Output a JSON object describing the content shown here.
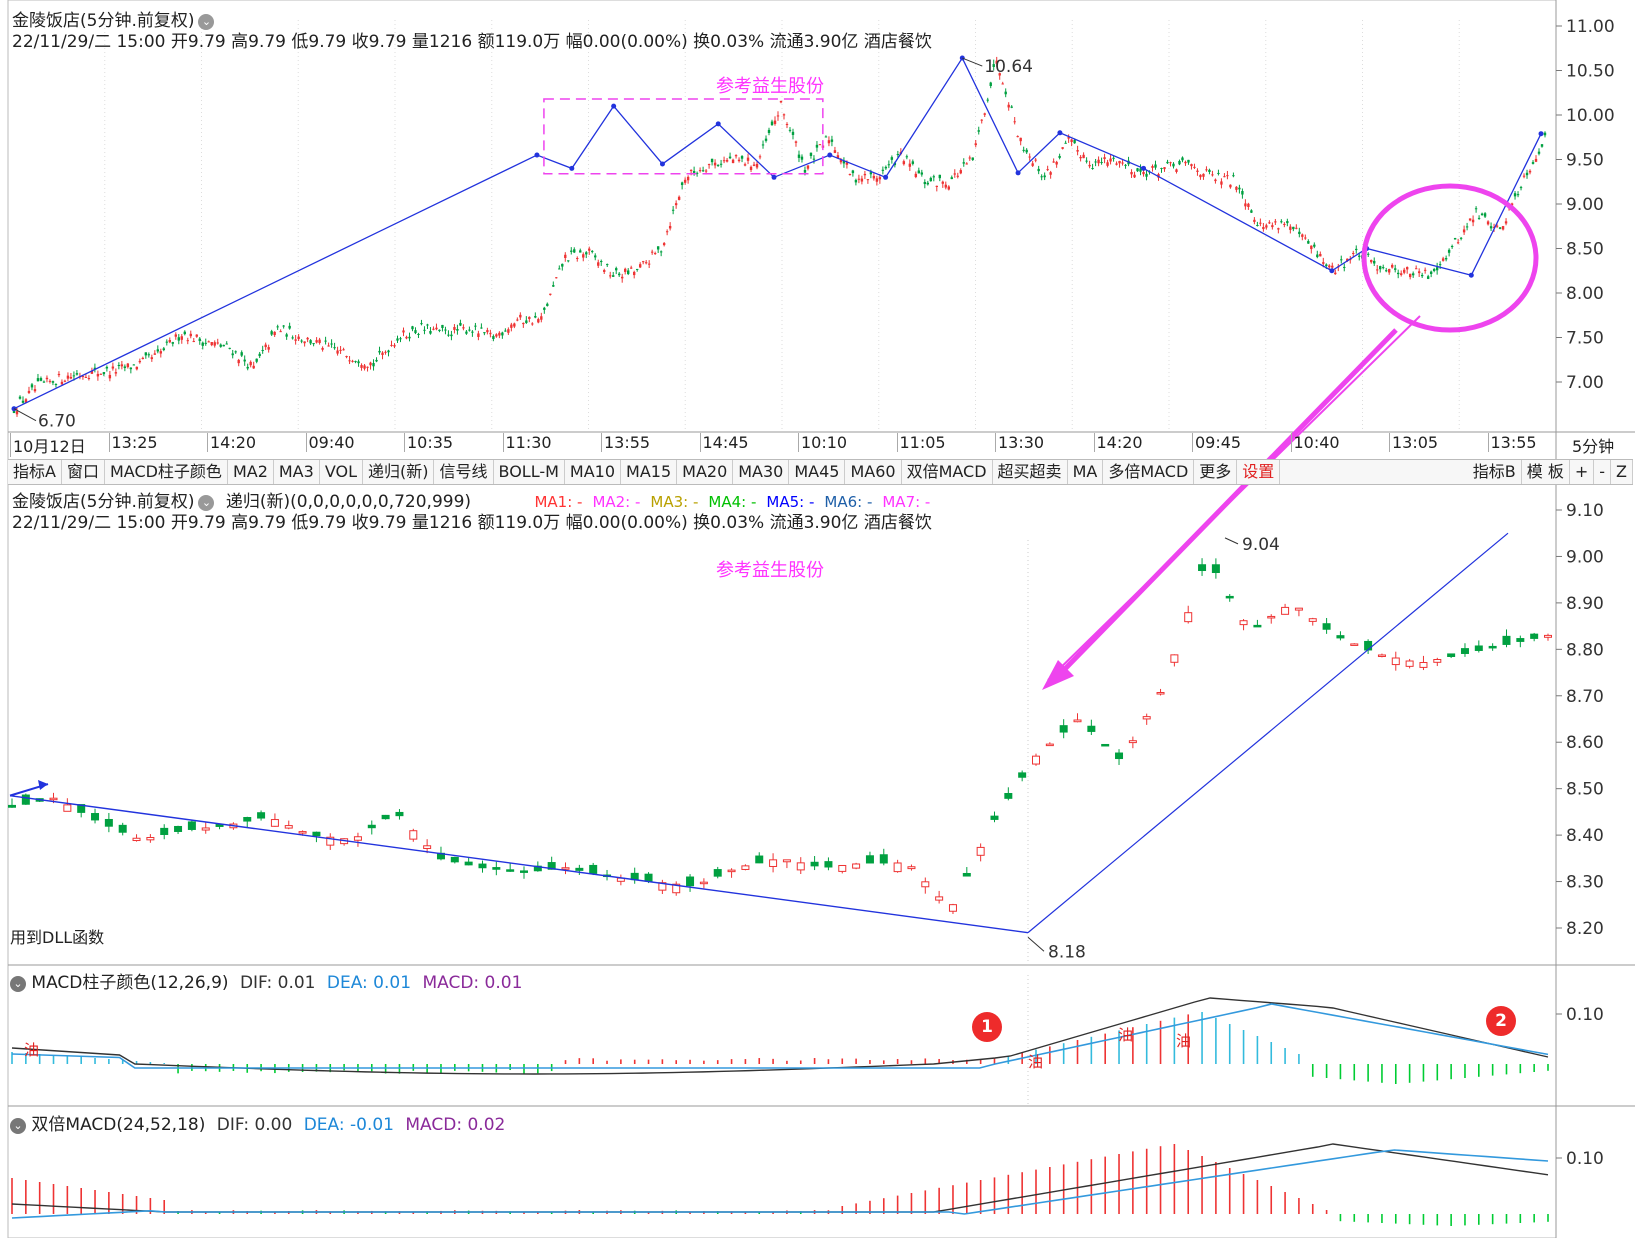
{
  "upper_panel": {
    "title": "金陵饭店(5分钟.前复权)",
    "info_line": "22/11/29/二 15:00 开9.79 高9.79 低9.79 收9.79 量1216 额119.0万 幅0.00(0.00%) 换0.03% 流通3.90亿 酒店餐饮",
    "note": "参考益生股份",
    "high_label": "10.64",
    "low_label": "6.70",
    "time_labels": [
      "10月12日",
      "13:25",
      "14:20",
      "09:40",
      "10:35",
      "11:30",
      "13:55",
      "14:45",
      "10:10",
      "11:05",
      "13:30",
      "14:20",
      "09:45",
      "10:40",
      "13:05",
      "13:55"
    ],
    "period_label": "5分钟"
  },
  "toolbar": {
    "left": [
      "指标A",
      "窗口",
      "MACD柱子颜色",
      "MA2",
      "MA3",
      "VOL",
      "递归(新)",
      "信号线",
      "BOLL-M",
      "MA10",
      "MA15",
      "MA20",
      "MA30",
      "MA45",
      "MA60",
      "双倍MACD",
      "超买超卖",
      "MA",
      "多倍MACD",
      "更多"
    ],
    "settings": "设置",
    "right": [
      "指标B",
      "模 板",
      "+",
      "-",
      "Z"
    ]
  },
  "middle_panel": {
    "title": "金陵饭店(5分钟.前复权)",
    "indicator": "递归(新)(0,0,0,0,0,0,720,999)",
    "ma_legend": [
      "MA1: -",
      "MA2: -",
      "MA3: -",
      "MA4: -",
      "MA5: -",
      "MA6: -",
      "MA7: -"
    ],
    "ma_colors": [
      "#ff3333",
      "#ff33ff",
      "#b8a000",
      "#00c000",
      "#0000ff",
      "#1e5fa8",
      "#ff33ff"
    ],
    "info_line": "22/11/29/二 15:00 开9.79 高9.79 低9.79 收9.79 量1216 额119.0万 幅0.00(0.00%) 换0.03% 流通3.90亿 酒店餐饮",
    "note": "参考益生股份",
    "high_label": "9.04",
    "low_label": "8.18",
    "bottom_note": "用到DLL函数"
  },
  "macd_panel": {
    "title": "MACD柱子颜色(12,26,9)",
    "dif": "DIF: 0.01",
    "dea": "DEA: 0.01",
    "macd": "MACD: 0.01",
    "tick": "0.10",
    "signal": "油",
    "badges": [
      "1",
      "2"
    ]
  },
  "double_macd_panel": {
    "title": "双倍MACD(24,52,18)",
    "dif": "DIF: 0.00",
    "dea": "DEA: -0.01",
    "macd": "MACD: 0.02",
    "tick": "0.10"
  },
  "colors": {
    "up": "#ee3333",
    "down": "#00a040",
    "trend": "#2233dd",
    "magenta": "#ee44ee",
    "dif": "#333333",
    "dea": "#3399dd",
    "bar_up": "#ee3333",
    "bar_dn": "#00cc33",
    "bar_cyan": "#33bbdd"
  },
  "chart_data": [
    {
      "type": "line",
      "title": "",
      "ylim": [
        6.5,
        11.1
      ],
      "yticks": [
        11.0,
        10.5,
        10.0,
        9.5,
        9.0,
        8.5,
        8.0,
        7.5,
        7.0
      ],
      "close_anchors": [
        6.7,
        6.95,
        7.05,
        7.1,
        7.12,
        7.18,
        7.3,
        7.55,
        7.45,
        7.38,
        7.15,
        7.6,
        7.5,
        7.4,
        7.3,
        7.2,
        7.5,
        7.6,
        7.55,
        7.6,
        7.5,
        7.7,
        7.7,
        8.4,
        8.45,
        8.2,
        8.25,
        8.5,
        9.3,
        9.45,
        9.5,
        9.45,
        10.1,
        9.4,
        9.75,
        9.3,
        9.3,
        9.55,
        9.25,
        9.25,
        9.5,
        10.64,
        9.7,
        9.3,
        9.7,
        9.45,
        9.5,
        9.35,
        9.4,
        9.45,
        9.3,
        9.25,
        8.75,
        8.8,
        8.55,
        8.25,
        8.45,
        8.3,
        8.25,
        8.2,
        8.5,
        8.9,
        8.7,
        9.3,
        9.79
      ],
      "zigzag": [
        [
          0,
          6.7
        ],
        [
          7.5,
          9.55
        ],
        [
          8,
          9.4
        ],
        [
          8.6,
          10.1
        ],
        [
          9.3,
          9.45
        ],
        [
          10.1,
          9.9
        ],
        [
          10.9,
          9.3
        ],
        [
          11.7,
          9.55
        ],
        [
          12.5,
          9.3
        ],
        [
          13.6,
          10.64
        ],
        [
          14.4,
          9.35
        ],
        [
          15,
          9.8
        ],
        [
          16.2,
          9.4
        ],
        [
          18.9,
          8.25
        ],
        [
          19.4,
          8.5
        ],
        [
          20.9,
          8.2
        ],
        [
          21.9,
          9.79
        ]
      ],
      "box": {
        "x_start": 7.6,
        "x_end": 11.6,
        "y_top": 10.18,
        "y_bottom": 9.34
      }
    },
    {
      "type": "bar",
      "title": "",
      "ylim": [
        8.15,
        9.12
      ],
      "yticks": [
        9.1,
        9.0,
        8.9,
        8.8,
        8.7,
        8.6,
        8.5,
        8.4,
        8.3,
        8.2
      ],
      "close_anchors": [
        8.46,
        8.48,
        8.43,
        8.39,
        8.41,
        8.42,
        8.44,
        8.4,
        8.39,
        8.45,
        8.35,
        8.33,
        8.32,
        8.33,
        8.31,
        8.3,
        8.29,
        8.33,
        8.35,
        8.33,
        8.34,
        8.34,
        8.24,
        8.43,
        8.57,
        8.65,
        8.56,
        8.72,
        9.0,
        8.84,
        8.9,
        8.83,
        8.79,
        8.77,
        8.79,
        8.81,
        8.83
      ],
      "trend_down": [
        [
          8.45,
          8.51
        ],
        [
          8.18,
          8.2
        ]
      ],
      "trend_up": [
        [
          8.18,
          8.2
        ],
        [
          8.8,
          9.05
        ]
      ]
    },
    {
      "type": "bar",
      "title": "MACD柱子颜色(12,26,9)",
      "ytick": 0.1,
      "dif": 0.01,
      "dea": 0.01,
      "macd": 0.01
    },
    {
      "type": "bar",
      "title": "双倍MACD(24,52,18)",
      "ytick": 0.1,
      "dif": 0.0,
      "dea": -0.01,
      "macd": 0.02
    }
  ]
}
